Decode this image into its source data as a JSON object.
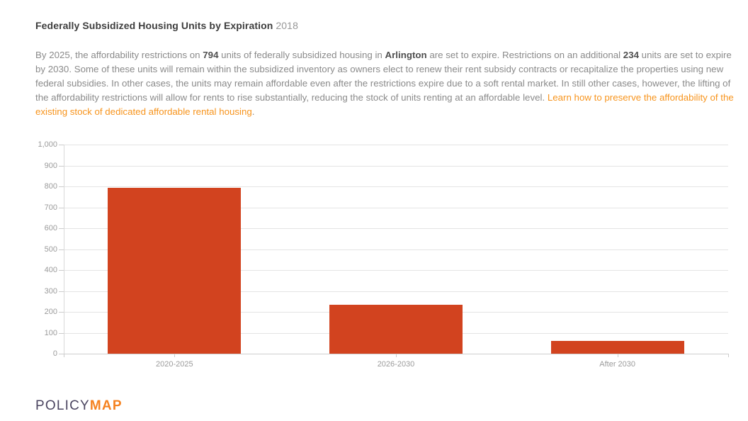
{
  "header": {
    "title": "Federally Subsidized Housing Units by Expiration",
    "year": "2018"
  },
  "summary": {
    "part1": "By 2025, the affordability restrictions on ",
    "bold1": "794",
    "part2": " units of federally subsidized housing in ",
    "bold2": "Arlington",
    "part3": " are set to expire. Restrictions on an additional ",
    "bold3": "234",
    "part4": " units are set to expire by 2030. Some of these units will remain within the subsidized inventory as owners elect to renew their rent subsidy contracts or recapitalize the properties using new federal subsidies. In other cases, the units may remain affordable even after the restrictions expire due to a soft rental market. In still other cases, however, the lifting of the affordability restrictions will allow for rents to rise substantially, reducing the stock of units renting at an affordable level. ",
    "link": "Learn how to preserve the affordability of the existing stock of dedicated affordable rental housing",
    "part5": "."
  },
  "chart_data": {
    "type": "bar",
    "title": "Federally Subsidized Housing Units by Expiration 2018",
    "categories": [
      "2020-2025",
      "2026-2030",
      "After 2030"
    ],
    "values": [
      794,
      234,
      62
    ],
    "xlabel": "",
    "ylabel": "",
    "ylim": [
      0,
      1000
    ],
    "yticks": [
      {
        "v": 0,
        "label": "0"
      },
      {
        "v": 100,
        "label": "100"
      },
      {
        "v": 200,
        "label": "200"
      },
      {
        "v": 300,
        "label": "300"
      },
      {
        "v": 400,
        "label": "400"
      },
      {
        "v": 500,
        "label": "500"
      },
      {
        "v": 600,
        "label": "600"
      },
      {
        "v": 700,
        "label": "700"
      },
      {
        "v": 800,
        "label": "800"
      },
      {
        "v": 900,
        "label": "900"
      },
      {
        "v": 1000,
        "label": "1,000"
      }
    ],
    "grid": true,
    "legend": false,
    "bar_color": "#d2431f"
  },
  "footer": {
    "logo_policy": "POLICY",
    "logo_map": "MAP"
  },
  "colors": {
    "bar": "#d2431f",
    "link": "#f7941d",
    "logo_purple": "#4b4560",
    "logo_orange": "#f58220",
    "title_text": "#3d3d3d",
    "body_text": "#8a8a8a",
    "axis_text": "#9b9b9b",
    "gridline": "#e4e4e4"
  }
}
